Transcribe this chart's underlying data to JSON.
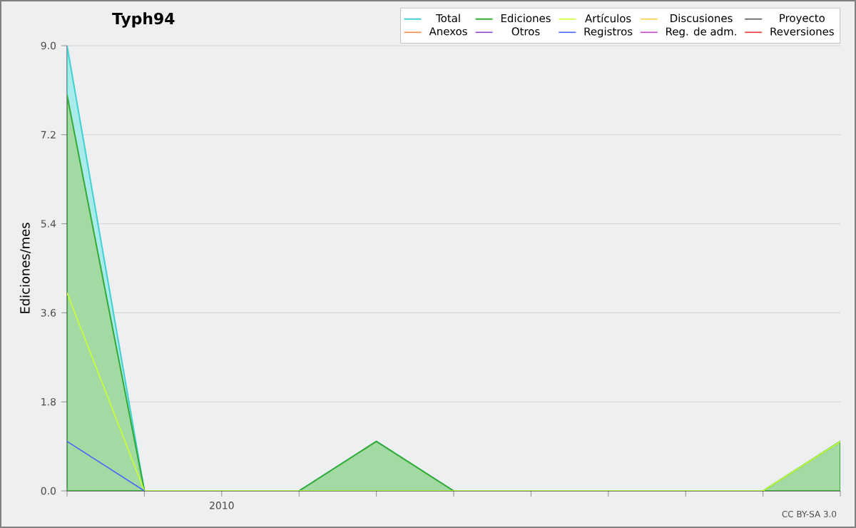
{
  "chart_data": {
    "type": "line",
    "title": "Typh94",
    "ylabel": "Ediciones/mes",
    "categories": [
      null,
      null,
      "2010",
      null,
      null,
      null,
      null,
      null,
      null,
      null,
      null
    ],
    "ylim": [
      0,
      9
    ],
    "yticks": [
      {
        "value": 0,
        "label": "0.0"
      },
      {
        "value": 1.8,
        "label": "1.8"
      },
      {
        "value": 3.6,
        "label": "3.6"
      },
      {
        "value": 5.4,
        "label": "5.4"
      },
      {
        "value": 7.2,
        "label": "7.2"
      },
      {
        "value": 9,
        "label": "9.0"
      }
    ],
    "grid": "y",
    "legend": "top right",
    "annotations": [
      "CC BY-SA 3.0"
    ],
    "series": [
      {
        "name": "Total",
        "type": "area",
        "color": "#40d0d0",
        "values": [
          9,
          0,
          0,
          0,
          1,
          0,
          0,
          0,
          0,
          0,
          1
        ]
      },
      {
        "name": "Ediciones",
        "type": "area",
        "color": "#33aa33",
        "values": [
          8,
          0,
          0,
          0,
          1,
          0,
          0,
          0,
          0,
          0,
          1
        ]
      },
      {
        "name": "Artículos",
        "color": "#ccff33",
        "values": [
          4,
          0,
          null,
          null,
          null,
          null,
          null,
          null,
          null,
          0,
          1
        ]
      },
      {
        "name": "Discusiones",
        "color": "#ffcc44",
        "values": [
          null,
          null,
          null,
          null,
          null,
          null,
          null,
          null,
          null,
          null,
          null
        ]
      },
      {
        "name": "Proyecto",
        "color": "#555555",
        "values": [
          null,
          null,
          null,
          null,
          null,
          null,
          null,
          null,
          null,
          null,
          null
        ]
      },
      {
        "name": "Anexos",
        "color": "#ff8844",
        "values": [
          null,
          null,
          null,
          null,
          null,
          null,
          null,
          null,
          null,
          null,
          null
        ]
      },
      {
        "name": "Otros",
        "color": "#8844cc",
        "values": [
          null,
          null,
          null,
          null,
          null,
          null,
          null,
          null,
          null,
          null,
          null
        ]
      },
      {
        "name": "Registros",
        "color": "#4466ff",
        "values": [
          1,
          0,
          null,
          null,
          null,
          null,
          null,
          null,
          null,
          null,
          null
        ]
      },
      {
        "name": "Reg. de adm.",
        "color": "#cc44cc",
        "values": [
          null,
          null,
          null,
          null,
          null,
          null,
          null,
          null,
          null,
          null,
          null
        ]
      },
      {
        "name": "Reversiones",
        "color": "#ee3333",
        "values": [
          null,
          null,
          null,
          null,
          null,
          null,
          null,
          null,
          null,
          null,
          null
        ]
      }
    ]
  }
}
